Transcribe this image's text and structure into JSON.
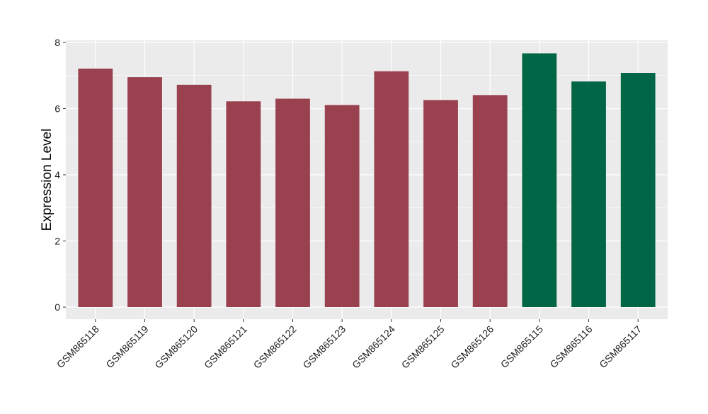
{
  "chart_data": {
    "type": "bar",
    "title": "",
    "xlabel": "",
    "ylabel": "Expression Level",
    "ylim": [
      -0.35,
      8.2
    ],
    "yticks": [
      0,
      2,
      4,
      6,
      8
    ],
    "grid": true,
    "categories": [
      "GSM865118",
      "GSM865119",
      "GSM865120",
      "GSM865121",
      "GSM865122",
      "GSM865123",
      "GSM865124",
      "GSM865125",
      "GSM865126",
      "GSM865115",
      "GSM865116",
      "GSM865117"
    ],
    "values": [
      7.21,
      6.95,
      6.72,
      6.22,
      6.3,
      6.11,
      7.13,
      6.26,
      6.41,
      7.67,
      6.82,
      7.08
    ],
    "groups": [
      "a",
      "a",
      "a",
      "a",
      "a",
      "a",
      "a",
      "a",
      "a",
      "b",
      "b",
      "b"
    ],
    "colors": {
      "a": "#9A4150",
      "b": "#006646"
    }
  }
}
